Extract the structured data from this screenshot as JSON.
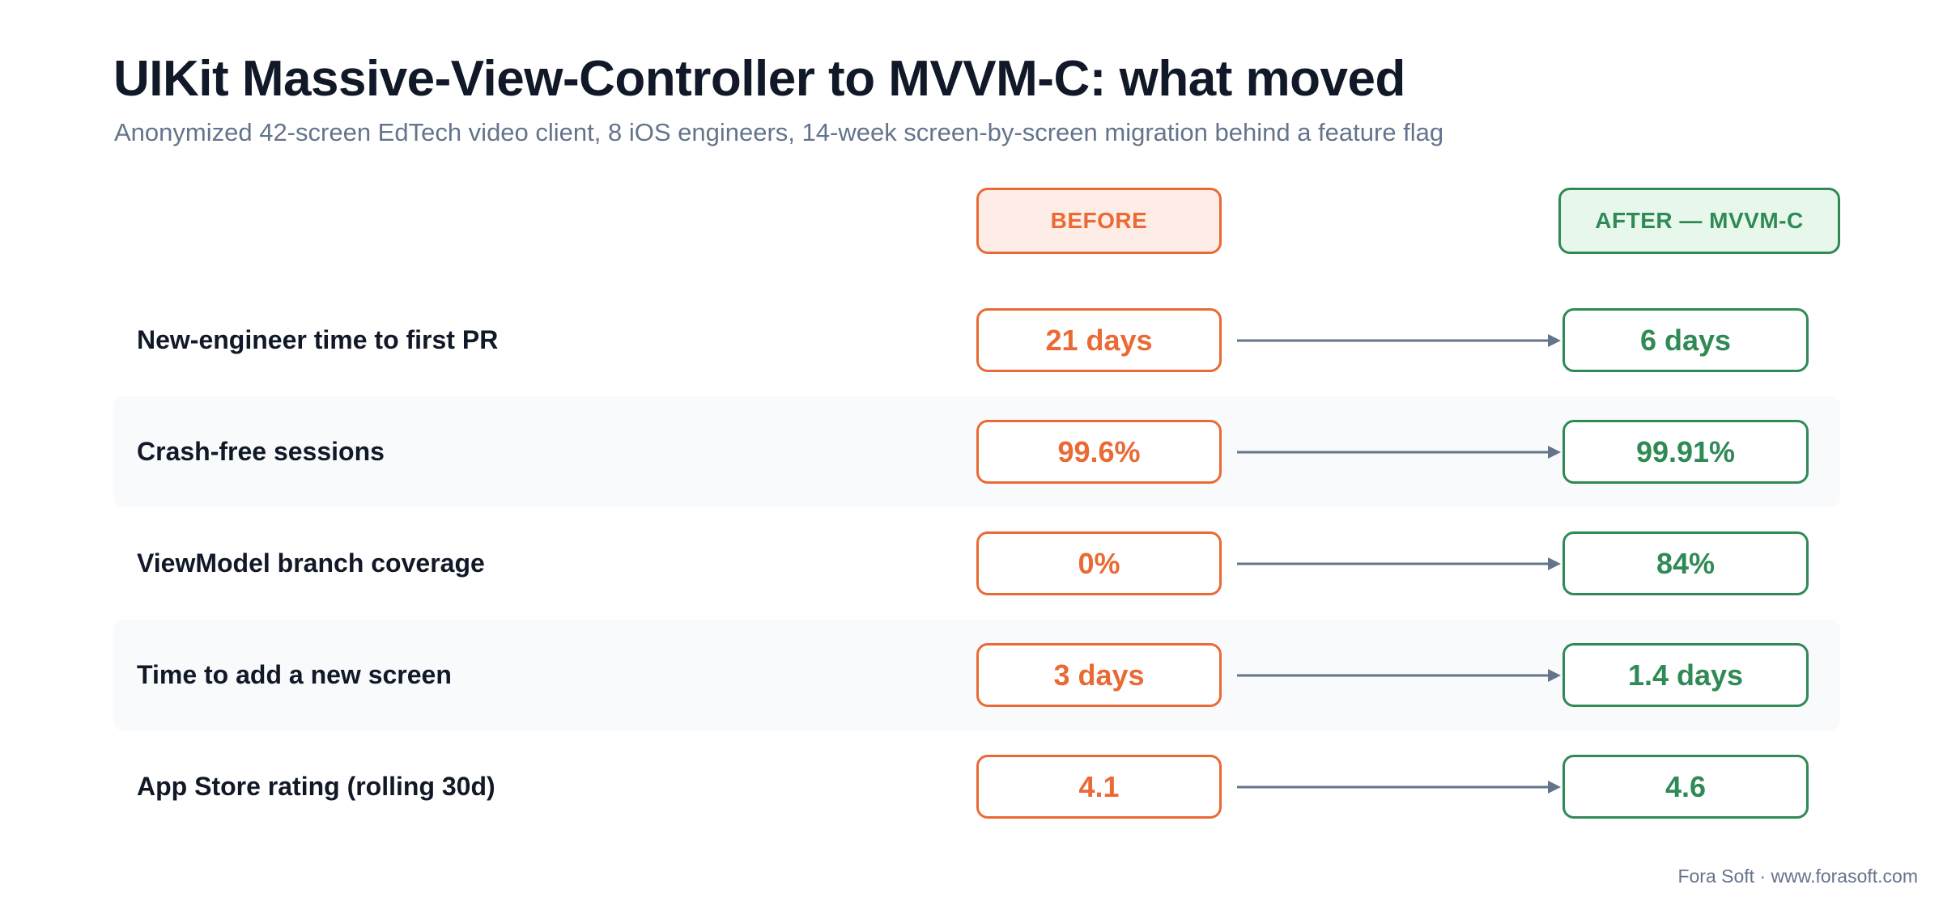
{
  "title": "UIKit Massive-View-Controller to MVVM-C: what moved",
  "subtitle": "Anonymized 42-screen EdTech video client, 8 iOS engineers, 14-week screen-by-screen migration behind a feature flag",
  "headers": {
    "before": "BEFORE",
    "after": "AFTER — MVVM-C"
  },
  "rows": [
    {
      "label": "New-engineer time to first PR",
      "before": "21 days",
      "after": "6 days"
    },
    {
      "label": "Crash-free sessions",
      "before": "99.6%",
      "after": "99.91%"
    },
    {
      "label": "ViewModel branch coverage",
      "before": "0%",
      "after": "84%"
    },
    {
      "label": "Time to add a new screen",
      "before": "3 days",
      "after": "1.4 days"
    },
    {
      "label": "App Store rating (rolling 30d)",
      "before": "4.1",
      "after": "4.6"
    }
  ],
  "footer": "Fora Soft · www.forasoft.com",
  "colors": {
    "before": "#ea6a35",
    "after": "#2f8a55",
    "arrow": "#64748b"
  }
}
